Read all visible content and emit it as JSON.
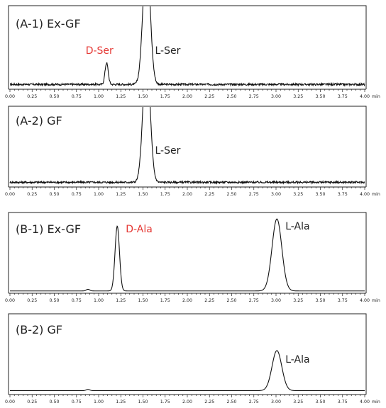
{
  "chart_data": [
    {
      "type": "line",
      "title": "(A-1) Ex-GF",
      "x_unit": "min",
      "xlim": [
        0,
        4
      ],
      "x_ticks": [
        "0.00",
        "0.25",
        "0.50",
        "0.75",
        "1.00",
        "1.25",
        "1.50",
        "1.75",
        "2.00",
        "2.25",
        "2.50",
        "2.75",
        "3.00",
        "3.25",
        "3.50",
        "3.75",
        "4.00"
      ],
      "baseline": 0.05,
      "ylim": [
        0,
        1.0
      ],
      "peaks": [
        {
          "label": "D-Ser",
          "label_color": "#e53935",
          "x": 1.09,
          "height": 0.26,
          "width": 0.018
        },
        {
          "label": "L-Ser",
          "label_color": "#222222",
          "x": 1.54,
          "height": 1.6,
          "width": 0.04
        }
      ],
      "noise": 0.012
    },
    {
      "type": "line",
      "title": "(A-2) GF",
      "x_unit": "min",
      "xlim": [
        0,
        4
      ],
      "x_ticks": [
        "0.00",
        "0.25",
        "0.50",
        "0.75",
        "1.00",
        "1.25",
        "1.50",
        "1.75",
        "2.00",
        "2.25",
        "2.50",
        "2.75",
        "3.00",
        "3.25",
        "3.50",
        "3.75",
        "4.00"
      ],
      "baseline": 0.05,
      "ylim": [
        0,
        1.0
      ],
      "peaks": [
        {
          "label": "L-Ser",
          "label_color": "#222222",
          "x": 1.54,
          "height": 1.6,
          "width": 0.04
        }
      ],
      "noise": 0.012
    },
    {
      "type": "line",
      "title": "(B-1) Ex-GF",
      "x_unit": "min",
      "xlim": [
        0,
        4
      ],
      "x_ticks": [
        "0.00",
        "0.25",
        "0.50",
        "0.75",
        "1.00",
        "1.25",
        "1.50",
        "1.75",
        "2.00",
        "2.25",
        "2.50",
        "2.75",
        "3.00",
        "3.25",
        "3.50",
        "3.75",
        "4.00"
      ],
      "baseline": 0.02,
      "ylim": [
        0,
        1.0
      ],
      "peaks": [
        {
          "label": "",
          "label_color": "#222222",
          "x": 0.88,
          "height": 0.02,
          "width": 0.02
        },
        {
          "label": "D-Ala",
          "label_color": "#e53935",
          "x": 1.21,
          "height": 0.81,
          "width": 0.025
        },
        {
          "label": "L-Ala",
          "label_color": "#222222",
          "x": 3.01,
          "height": 0.9,
          "width": 0.055
        }
      ],
      "noise": 0.0
    },
    {
      "type": "line",
      "title": "(B-2) GF",
      "x_unit": "min",
      "xlim": [
        0,
        4
      ],
      "x_ticks": [
        "0.00",
        "0.25",
        "0.50",
        "0.75",
        "1.00",
        "1.25",
        "1.50",
        "1.75",
        "2.00",
        "2.25",
        "2.50",
        "2.75",
        "3.00",
        "3.25",
        "3.50",
        "3.75",
        "4.00"
      ],
      "baseline": 0.04,
      "ylim": [
        0,
        1.0
      ],
      "peaks": [
        {
          "label": "",
          "label_color": "#222222",
          "x": 0.88,
          "height": 0.015,
          "width": 0.02
        },
        {
          "label": "L-Ala",
          "label_color": "#222222",
          "x": 3.01,
          "height": 0.5,
          "width": 0.055
        }
      ],
      "noise": 0.0
    }
  ]
}
